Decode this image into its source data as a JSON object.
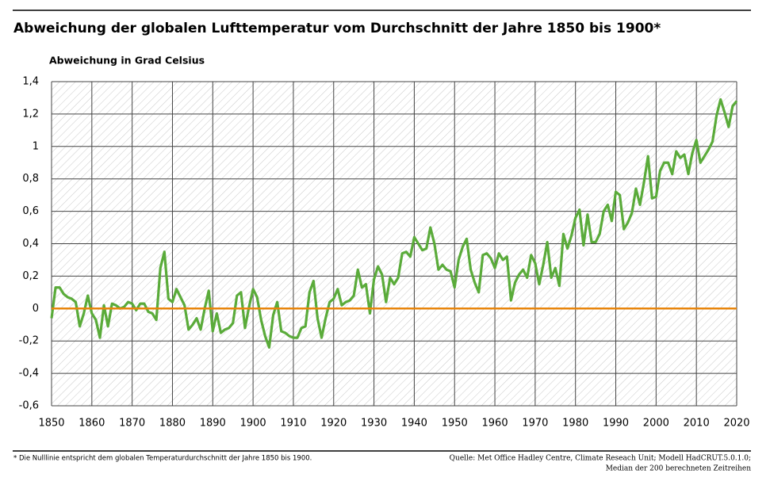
{
  "chart_data": {
    "type": "line",
    "title": "Abweichung der globalen Lufttemperatur vom Durchschnitt der Jahre 1850 bis 1900*",
    "y_label": "Abweichung in Grad Celsius",
    "footnote": "* Die Nulllinie entspricht dem globalen Temperaturdurchschnitt der Jahre 1850 bis 1900.",
    "source": [
      "Quelle: Met Office Hadley Centre, Climate Reseach Unit; Modell HadCRUT.5.0.1.0;",
      "Median der 200 berechneten Zeitreihen"
    ],
    "color": "#5aab3a",
    "zero_line_color": "#e8850c",
    "grid": true,
    "x": [
      1850,
      1851,
      1852,
      1853,
      1854,
      1855,
      1856,
      1857,
      1858,
      1859,
      1860,
      1861,
      1862,
      1863,
      1864,
      1865,
      1866,
      1867,
      1868,
      1869,
      1870,
      1871,
      1872,
      1873,
      1874,
      1875,
      1876,
      1877,
      1878,
      1879,
      1880,
      1881,
      1882,
      1883,
      1884,
      1885,
      1886,
      1887,
      1888,
      1889,
      1890,
      1891,
      1892,
      1893,
      1894,
      1895,
      1896,
      1897,
      1898,
      1899,
      1900,
      1901,
      1902,
      1903,
      1904,
      1905,
      1906,
      1907,
      1908,
      1909,
      1910,
      1911,
      1912,
      1913,
      1914,
      1915,
      1916,
      1917,
      1918,
      1919,
      1920,
      1921,
      1922,
      1923,
      1924,
      1925,
      1926,
      1927,
      1928,
      1929,
      1930,
      1931,
      1932,
      1933,
      1934,
      1935,
      1936,
      1937,
      1938,
      1939,
      1940,
      1941,
      1942,
      1943,
      1944,
      1945,
      1946,
      1947,
      1948,
      1949,
      1950,
      1951,
      1952,
      1953,
      1954,
      1955,
      1956,
      1957,
      1958,
      1959,
      1960,
      1961,
      1962,
      1963,
      1964,
      1965,
      1966,
      1967,
      1968,
      1969,
      1970,
      1971,
      1972,
      1973,
      1974,
      1975,
      1976,
      1977,
      1978,
      1979,
      1980,
      1981,
      1982,
      1983,
      1984,
      1985,
      1986,
      1987,
      1988,
      1989,
      1990,
      1991,
      1992,
      1993,
      1994,
      1995,
      1996,
      1997,
      1998,
      1999,
      2000,
      2001,
      2002,
      2003,
      2004,
      2005,
      2006,
      2007,
      2008,
      2009,
      2010,
      2011,
      2012,
      2013,
      2014,
      2015,
      2016,
      2017,
      2018,
      2019,
      2020
    ],
    "values": [
      -0.06,
      0.13,
      0.13,
      0.09,
      0.07,
      0.06,
      0.04,
      -0.11,
      -0.03,
      0.08,
      -0.03,
      -0.07,
      -0.18,
      0.02,
      -0.11,
      0.03,
      0.02,
      0.0,
      0.01,
      0.04,
      0.03,
      -0.01,
      0.03,
      0.03,
      -0.02,
      -0.03,
      -0.07,
      0.25,
      0.35,
      0.06,
      0.04,
      0.12,
      0.07,
      0.02,
      -0.13,
      -0.1,
      -0.06,
      -0.13,
      0.0,
      0.11,
      -0.14,
      -0.03,
      -0.15,
      -0.13,
      -0.12,
      -0.09,
      0.08,
      0.1,
      -0.12,
      0.01,
      0.12,
      0.07,
      -0.07,
      -0.17,
      -0.24,
      -0.04,
      0.04,
      -0.14,
      -0.15,
      -0.17,
      -0.18,
      -0.18,
      -0.12,
      -0.11,
      0.1,
      0.17,
      -0.06,
      -0.18,
      -0.06,
      0.04,
      0.06,
      0.12,
      0.02,
      0.04,
      0.05,
      0.08,
      0.24,
      0.13,
      0.15,
      -0.03,
      0.18,
      0.26,
      0.21,
      0.04,
      0.19,
      0.15,
      0.19,
      0.34,
      0.35,
      0.32,
      0.44,
      0.4,
      0.36,
      0.37,
      0.5,
      0.4,
      0.24,
      0.27,
      0.24,
      0.23,
      0.13,
      0.3,
      0.38,
      0.43,
      0.24,
      0.16,
      0.1,
      0.33,
      0.34,
      0.31,
      0.25,
      0.34,
      0.3,
      0.32,
      0.05,
      0.16,
      0.21,
      0.24,
      0.19,
      0.33,
      0.28,
      0.15,
      0.27,
      0.41,
      0.19,
      0.25,
      0.14,
      0.46,
      0.37,
      0.45,
      0.56,
      0.61,
      0.39,
      0.58,
      0.41,
      0.41,
      0.46,
      0.6,
      0.64,
      0.54,
      0.72,
      0.7,
      0.49,
      0.53,
      0.59,
      0.74,
      0.64,
      0.78,
      0.94,
      0.68,
      0.69,
      0.85,
      0.9,
      0.9,
      0.83,
      0.97,
      0.93,
      0.95,
      0.83,
      0.96,
      1.04,
      0.9,
      0.94,
      0.98,
      1.03,
      1.19,
      1.29,
      1.21,
      1.12,
      1.25,
      1.28
    ],
    "xlim": [
      1850,
      2020
    ],
    "xticks": [
      1850,
      1860,
      1870,
      1880,
      1890,
      1900,
      1910,
      1920,
      1930,
      1940,
      1950,
      1960,
      1970,
      1980,
      1990,
      2000,
      2010,
      2020
    ],
    "ylim": [
      -0.6,
      1.4
    ],
    "yticks": [
      {
        "value": -0.6,
        "label": "-0,6"
      },
      {
        "value": -0.4,
        "label": "-0,4"
      },
      {
        "value": -0.2,
        "label": "-0,2"
      },
      0,
      {
        "value": 0.2,
        "label": "0,2"
      },
      {
        "value": 0.4,
        "label": "0,4"
      },
      {
        "value": 0.6,
        "label": "0,6"
      },
      {
        "value": 0.8,
        "label": "0,8"
      },
      1,
      {
        "value": 1.2,
        "label": "1,2"
      },
      {
        "value": 1.4,
        "label": "1,4"
      }
    ]
  }
}
